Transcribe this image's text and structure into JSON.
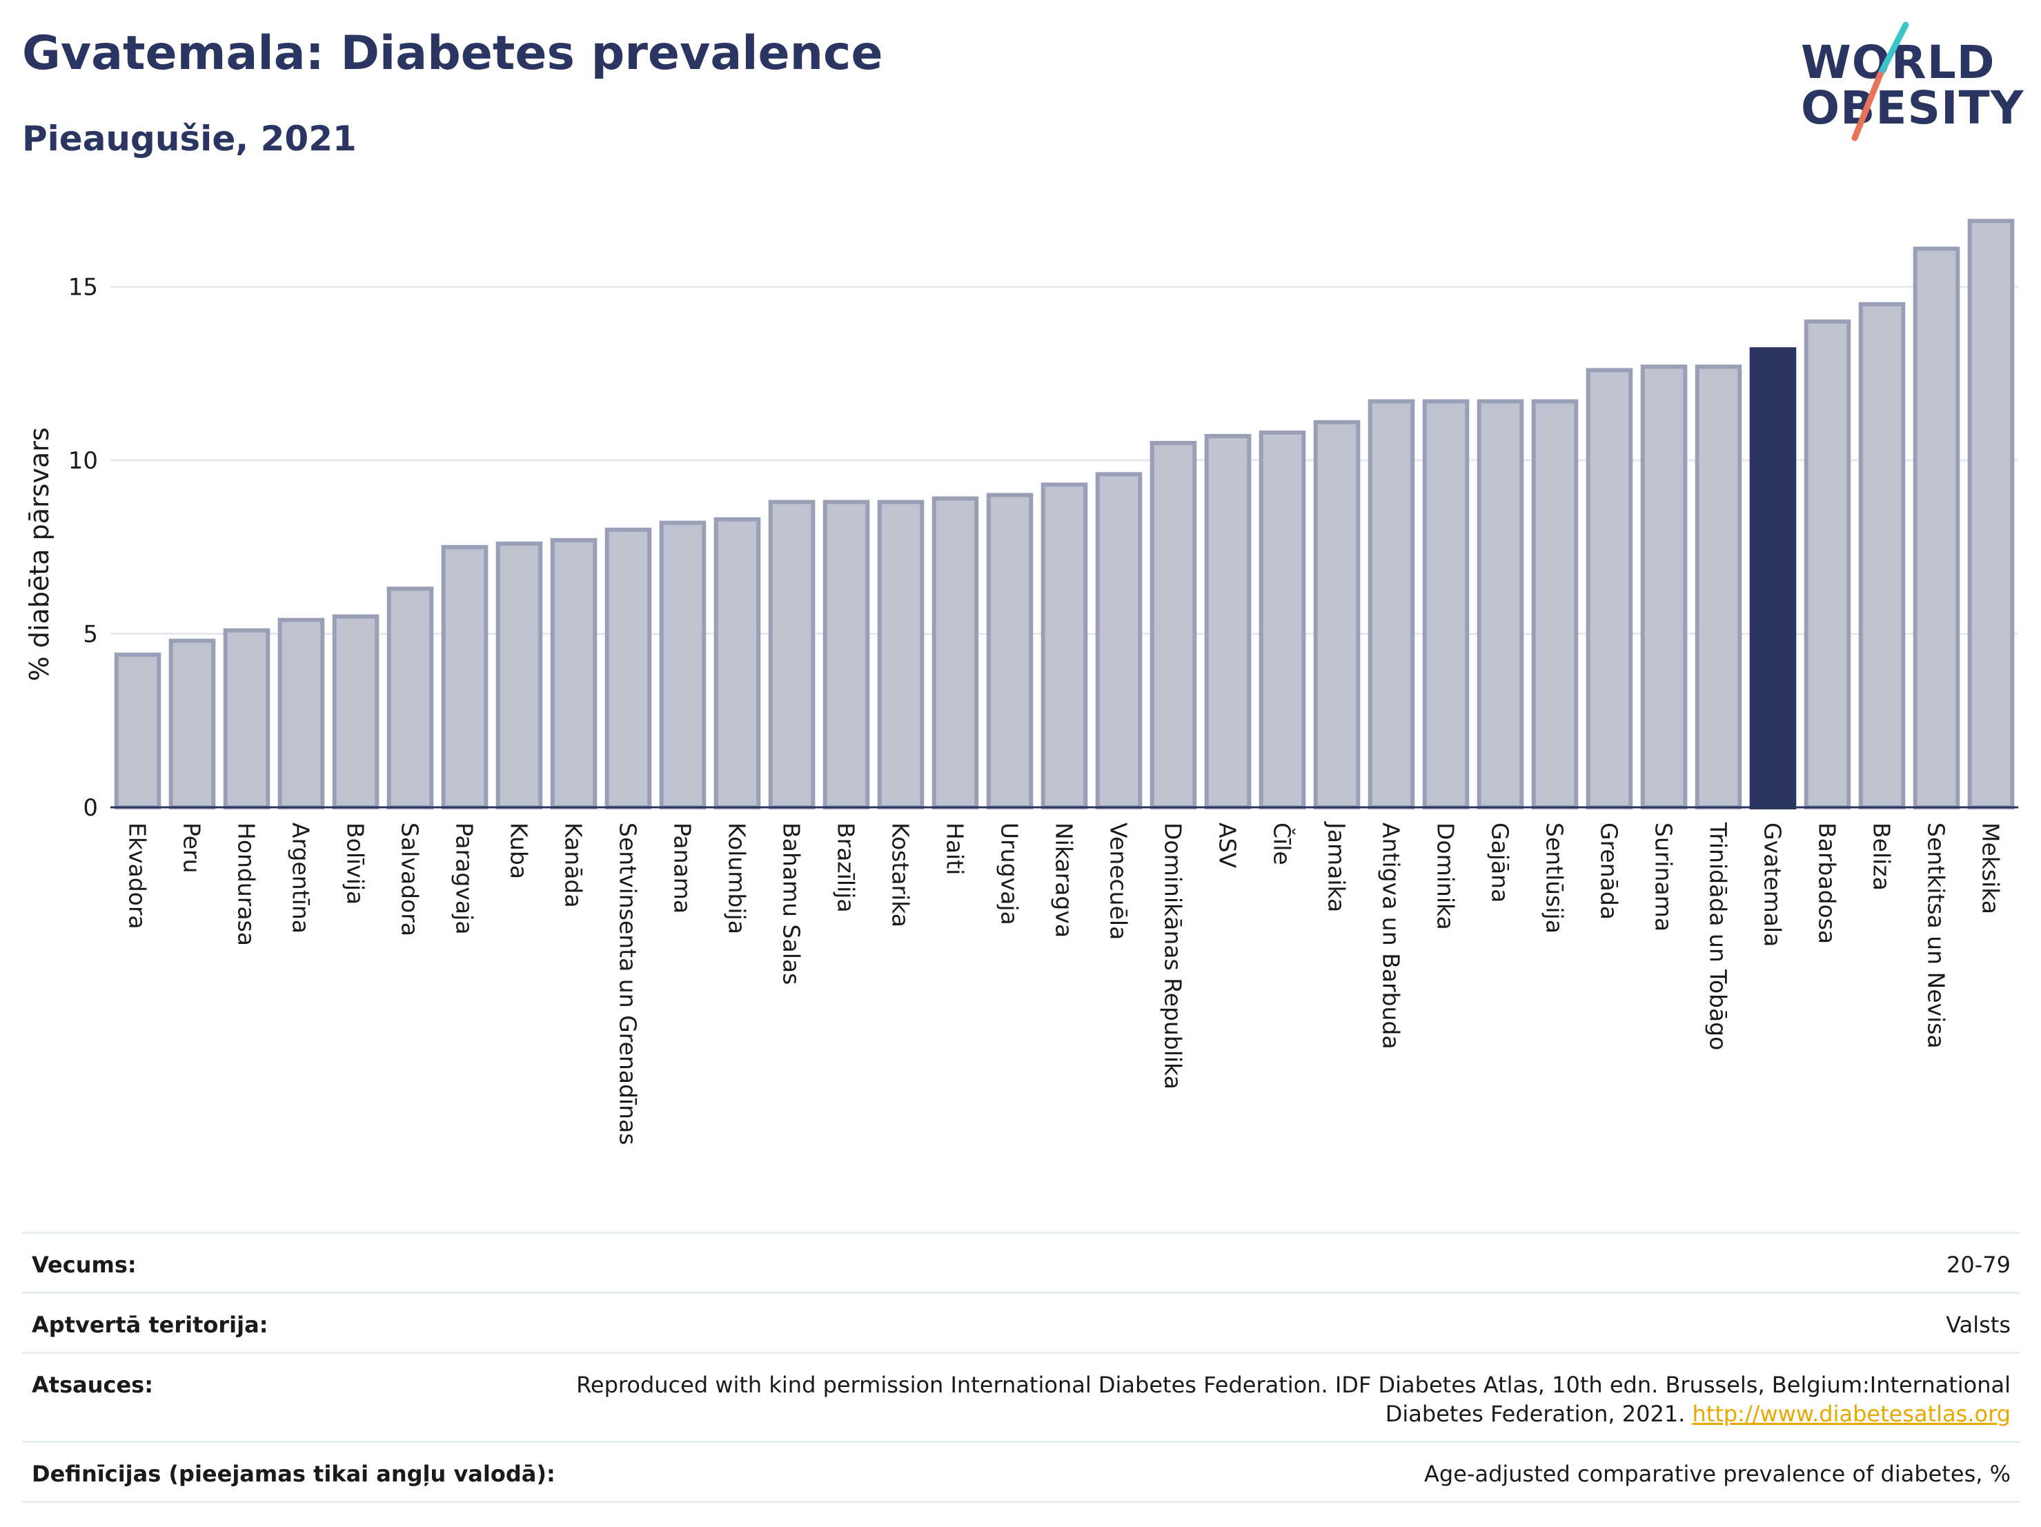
{
  "header": {
    "title": "Gvatemala: Diabetes prevalence",
    "subtitle": "Pieaugušie, 2021"
  },
  "logo": {
    "line1": "WORLD",
    "line2": "OBESITY",
    "colors": {
      "navy": "#2a3561",
      "teal": "#3cc4c8",
      "coral": "#e8735a"
    }
  },
  "colors": {
    "bar_default": "#bfc2cf",
    "bar_edge": "#9a9fb8",
    "bar_highlight": "#2a3561",
    "grid": "#e6e8ed",
    "link": "#e8a800"
  },
  "chart_data": {
    "type": "bar",
    "ylabel": "% diabēta pārsvars",
    "ylim": [
      0,
      17.5
    ],
    "yticks": [
      0,
      5,
      10,
      15
    ],
    "grid": "horizontal",
    "highlight": "Gvatemala",
    "categories": [
      "Ekvadora",
      "Peru",
      "Hondurasa",
      "Argentīna",
      "Bolīvija",
      "Salvadora",
      "Paragvaja",
      "Kuba",
      "Kanāda",
      "Sentvinsenta un Grenadīnas",
      "Panama",
      "Kolumbija",
      "Bahamu Salas",
      "Brazīlija",
      "Kostarika",
      "Haiti",
      "Urugvaja",
      "Nikaragva",
      "Venecuēla",
      "Dominikānas Republika",
      "ASV",
      "Čīle",
      "Jamaika",
      "Antigva un Barbuda",
      "Dominika",
      "Gajāna",
      "Sentlūsija",
      "Grenāda",
      "Surinama",
      "Trinidāda un Tobāgo",
      "Gvatemala",
      "Barbadosa",
      "Beliza",
      "Sentkitsa un Nevisa",
      "Meksika"
    ],
    "values": [
      4.4,
      4.8,
      5.1,
      5.4,
      5.5,
      6.3,
      7.5,
      7.6,
      7.7,
      8.0,
      8.2,
      8.3,
      8.8,
      8.8,
      8.8,
      8.9,
      9.0,
      9.3,
      9.6,
      10.5,
      10.7,
      10.8,
      11.1,
      11.7,
      11.7,
      11.7,
      11.7,
      12.6,
      12.7,
      12.7,
      13.2,
      14.0,
      14.5,
      16.1,
      16.9
    ]
  },
  "info": {
    "age": {
      "label": "Vecums:",
      "value": "20-79"
    },
    "coverage": {
      "label": "Aptvertā teritorija:",
      "value": "Valsts"
    },
    "references": {
      "label": "Atsauces:",
      "text_line1": "Reproduced with kind permission International Diabetes Federation.  IDF Diabetes Atlas, 10th edn. Brussels, Belgium:International",
      "text_line2": "Diabetes Federation, 2021. ",
      "link": "http://www.diabetesatlas.org"
    },
    "definitions": {
      "label": "Definīcijas (pieejamas tikai angļu valodā):",
      "value": "Age-adjusted comparative prevalence of diabetes, %"
    }
  }
}
